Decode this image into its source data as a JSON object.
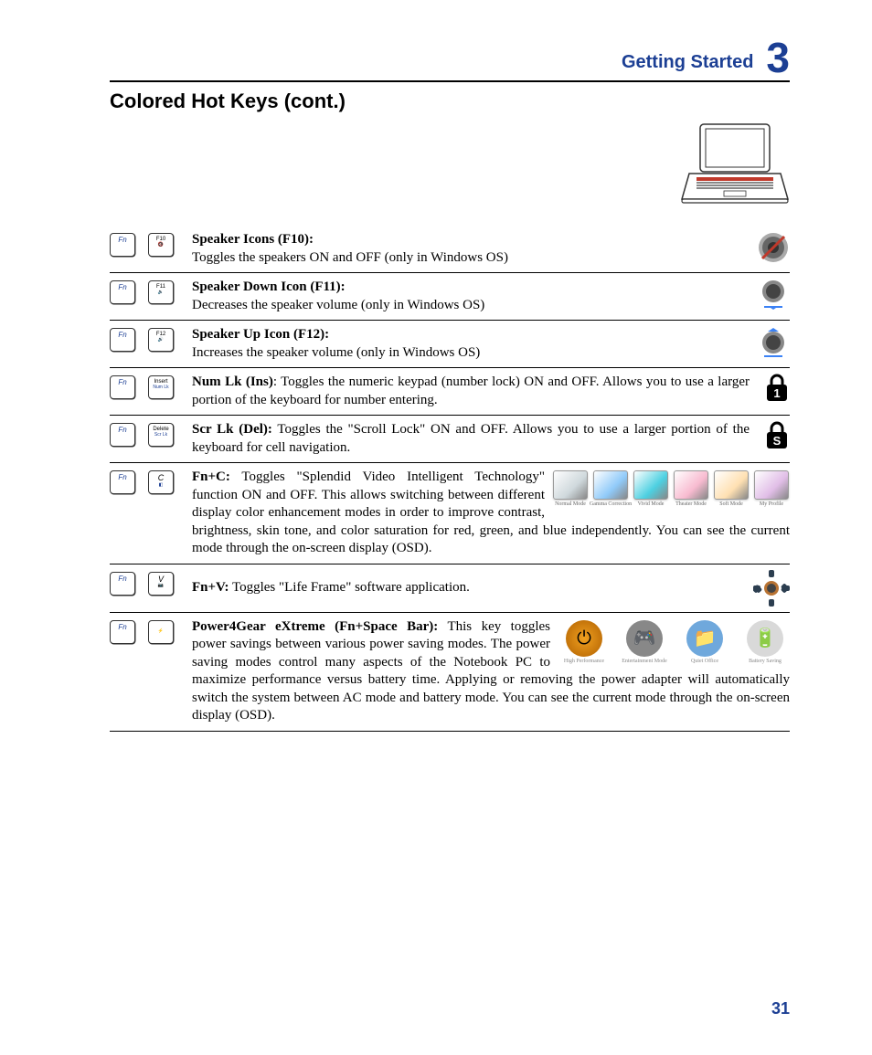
{
  "header": {
    "section_title": "Getting Started",
    "chapter_number": "3"
  },
  "page_title": "Colored Hot Keys (cont.)",
  "page_number": "31",
  "colors": {
    "brand_blue": "#1c3f94",
    "text_black": "#000000",
    "background": "#ffffff"
  },
  "entries": [
    {
      "id": "speaker-f10",
      "fn_label": "Fn",
      "key_top": "F10",
      "key_sub": "🔇",
      "title": "Speaker Icons (F10):",
      "body": " Toggles the speakers ON and OFF (only in Windows OS)",
      "icon": "speaker-mute"
    },
    {
      "id": "speaker-f11",
      "fn_label": "Fn",
      "key_top": "F11",
      "key_sub": "🔉",
      "title": "Speaker Down Icon (F11):",
      "body": " Decreases the speaker volume (only in Windows OS)",
      "icon": "speaker-down"
    },
    {
      "id": "speaker-f12",
      "fn_label": "Fn",
      "key_top": "F12",
      "key_sub": "🔊",
      "title": "Speaker Up Icon (F12):",
      "body": " Increases the speaker volume (only in Windows OS)",
      "icon": "speaker-up"
    },
    {
      "id": "numlk",
      "fn_label": "Fn",
      "key_top": "Insert",
      "key_sub": "Num Lk",
      "title": "Num Lk (Ins)",
      "body": ": Toggles the numeric keypad (number lock) ON and OFF. Allows you to use a larger portion of the keyboard for number entering.",
      "icon": "lock",
      "lock_char": "1"
    },
    {
      "id": "scrlk",
      "fn_label": "Fn",
      "key_top": "Delete",
      "key_sub": "Scr Lk",
      "title": "Scr Lk (Del):",
      "body": " Toggles the \"Scroll Lock\" ON and OFF. Allows you to use a larger portion of the keyboard for cell navigation.",
      "icon": "lock",
      "lock_char": "S"
    },
    {
      "id": "fnc",
      "fn_label": "Fn",
      "key_top": "C",
      "key_sub": "◧",
      "title": "Fn+C:",
      "body": " Toggles \"Splendid Video Intelligent Technology\" function ON and OFF. This allows switching between different display color enhancement modes in order to improve contrast, brightness, skin tone, and color saturation for red, green, and blue independently. You can see the current mode through the on-screen display (OSD).",
      "icon": "splendid",
      "splendid_modes": [
        {
          "label": "Normal Mode",
          "color": "#cfd8dc"
        },
        {
          "label": "Gamma Correction",
          "color": "#90caf9"
        },
        {
          "label": "Vivid Mode",
          "color": "#4dd0e1"
        },
        {
          "label": "Theater Mode",
          "color": "#f8bbd0"
        },
        {
          "label": "Soft Mode",
          "color": "#ffe0b2"
        },
        {
          "label": "My Profile",
          "color": "#e1bee7"
        }
      ]
    },
    {
      "id": "fnv",
      "fn_label": "Fn",
      "key_top": "V",
      "key_sub": "📷",
      "title": "Fn+V:",
      "body": " Toggles \"Life Frame\" software application.",
      "icon": "gear"
    },
    {
      "id": "p4g",
      "fn_label": "Fn",
      "key_top": "",
      "key_sub": "⚡",
      "title": "Power4Gear eXtreme (Fn+Space Bar):",
      "body": " This key toggles power savings between various power saving modes. The power saving modes control many aspects of the Notebook PC to maximize performance versus battery time. Applying or removing the power adapter will automatically switch the system between AC mode and battery mode. You can see the current mode through the on-screen display (OSD).",
      "icon": "p4g",
      "p4g_modes": [
        {
          "label": "High Performance",
          "glyph_bg": "radial-gradient(circle,#f0a020,#b06000)",
          "glyph": "⏻"
        },
        {
          "label": "Entertainment Mode",
          "glyph_bg": "#888",
          "glyph": "🎮"
        },
        {
          "label": "Quiet Office",
          "glyph_bg": "#6fa8dc",
          "glyph": "📁"
        },
        {
          "label": "Battery Saving",
          "glyph_bg": "#d9d9d9",
          "glyph": "🔋"
        }
      ]
    }
  ]
}
